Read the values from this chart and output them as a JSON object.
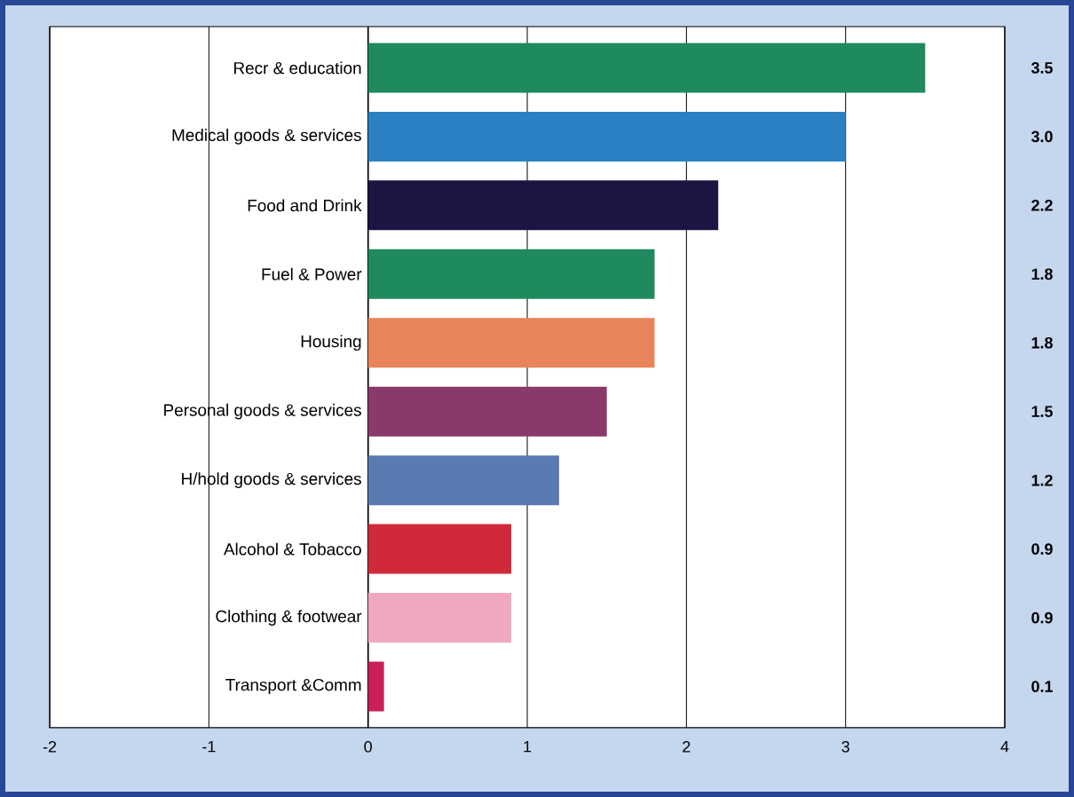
{
  "chart_data": {
    "type": "bar",
    "orientation": "horizontal",
    "categories": [
      "Recr & education",
      "Medical goods & services",
      "Food and Drink",
      "Fuel & Power",
      "Housing",
      "Personal goods & services",
      "H/hold goods & services",
      "Alcohol & Tobacco",
      "Clothing & footwear",
      "Transport &Comm"
    ],
    "values": [
      3.5,
      3.0,
      2.2,
      1.8,
      1.8,
      1.5,
      1.2,
      0.9,
      0.9,
      0.1
    ],
    "colors": [
      "#1e8a5e",
      "#2a80c2",
      "#1a1542",
      "#1e8a5e",
      "#e8845a",
      "#8a3a6a",
      "#5a7ab2",
      "#d02a3a",
      "#f0a8c2",
      "#c81e5a"
    ],
    "value_labels": [
      "3.5",
      "3.0",
      "2.2",
      "1.8",
      "1.8",
      "1.5",
      "1.2",
      "0.9",
      "0.9",
      "0.1"
    ],
    "xlim": [
      -2,
      4
    ],
    "xticks": [
      -2,
      -1,
      0,
      1,
      2,
      3,
      4
    ],
    "grid": "x"
  }
}
